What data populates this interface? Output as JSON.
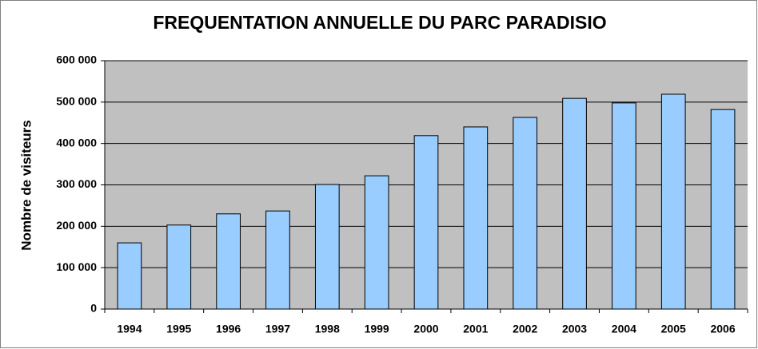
{
  "chart_data": {
    "type": "bar",
    "title": "FREQUENTATION ANNUELLE DU PARC PARADISIO",
    "y_label": "Nombre de visiteurs",
    "categories": [
      "1994",
      "1995",
      "1996",
      "1997",
      "1998",
      "1999",
      "2000",
      "2001",
      "2002",
      "2003",
      "2004",
      "2005",
      "2006"
    ],
    "values": [
      160000,
      203000,
      230000,
      237000,
      301000,
      322000,
      419000,
      440000,
      463000,
      509000,
      498000,
      519000,
      482000
    ],
    "color": "#99ccff",
    "ylim": [
      0,
      600000
    ],
    "yticks": [
      0,
      {
        "value": 100000,
        "label": "100 000"
      },
      {
        "value": 200000,
        "label": "200 000"
      },
      {
        "value": 300000,
        "label": "300 000"
      },
      {
        "value": 400000,
        "label": "400 000"
      },
      {
        "value": 500000,
        "label": "500 000"
      },
      {
        "value": 600000,
        "label": "600 000"
      }
    ],
    "grid": true
  }
}
